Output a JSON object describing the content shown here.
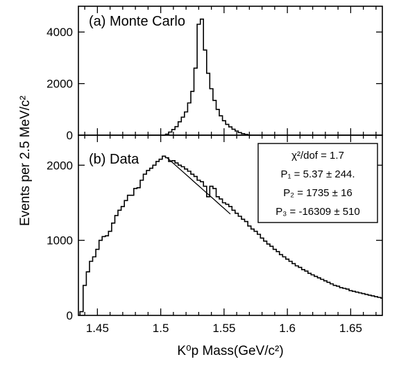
{
  "chart_data": [
    {
      "panel": "a",
      "type": "line",
      "drawstyle": "histogram-steps",
      "label": "(a) Monte Carlo",
      "xlim": [
        1.435,
        1.675
      ],
      "ylim": [
        0,
        5000
      ],
      "yticks": [
        0,
        2000,
        4000
      ],
      "ytick_labels": [
        "0",
        "2000",
        "4000"
      ],
      "x": [
        1.5025,
        1.505,
        1.5075,
        1.51,
        1.5125,
        1.515,
        1.5175,
        1.52,
        1.5225,
        1.525,
        1.5275,
        1.53,
        1.5325,
        1.535,
        1.5375,
        1.54,
        1.5425,
        1.545,
        1.5475,
        1.55,
        1.5525,
        1.555,
        1.5575,
        1.56,
        1.5625,
        1.565,
        1.5675,
        1.57
      ],
      "y": [
        0,
        40,
        120,
        220,
        330,
        520,
        700,
        900,
        1250,
        1700,
        2600,
        4300,
        4500,
        3300,
        2400,
        1800,
        1350,
        1000,
        750,
        560,
        420,
        320,
        230,
        160,
        100,
        60,
        30,
        0
      ]
    },
    {
      "panel": "b",
      "type": "line",
      "drawstyle": "histogram-steps",
      "label": "(b) Data",
      "xlim": [
        1.435,
        1.675
      ],
      "ylim": [
        0,
        2400
      ],
      "yticks": [
        0,
        1000,
        2000
      ],
      "ytick_labels": [
        "0",
        "1000",
        "2000"
      ],
      "xticks": [
        1.45,
        1.5,
        1.55,
        1.6,
        1.65
      ],
      "xtick_labels": [
        "1.45",
        "1.5",
        "1.55",
        "1.6",
        "1.65"
      ],
      "x": [
        1.4375,
        1.44,
        1.4425,
        1.445,
        1.4475,
        1.45,
        1.4525,
        1.455,
        1.4575,
        1.46,
        1.4625,
        1.465,
        1.4675,
        1.47,
        1.4725,
        1.475,
        1.4775,
        1.48,
        1.4825,
        1.485,
        1.4875,
        1.49,
        1.4925,
        1.495,
        1.4975,
        1.5,
        1.5025,
        1.505,
        1.5075,
        1.51,
        1.5125,
        1.515,
        1.5175,
        1.52,
        1.5225,
        1.525,
        1.5275,
        1.53,
        1.5325,
        1.535,
        1.5375,
        1.54,
        1.5425,
        1.545,
        1.5475,
        1.55,
        1.5525,
        1.555,
        1.5575,
        1.56,
        1.5625,
        1.565,
        1.5675,
        1.57,
        1.5725,
        1.575,
        1.5775,
        1.58,
        1.5825,
        1.585,
        1.5875,
        1.59,
        1.5925,
        1.595,
        1.5975,
        1.6,
        1.6025,
        1.605,
        1.6075,
        1.61,
        1.6125,
        1.615,
        1.6175,
        1.62,
        1.6225,
        1.625,
        1.6275,
        1.63,
        1.6325,
        1.635,
        1.6375,
        1.64,
        1.6425,
        1.645,
        1.6475,
        1.65,
        1.6525,
        1.655,
        1.6575,
        1.66,
        1.6625,
        1.665,
        1.6675,
        1.67,
        1.6725,
        1.675
      ],
      "y": [
        50,
        400,
        580,
        720,
        780,
        880,
        1000,
        1050,
        1060,
        1120,
        1230,
        1330,
        1400,
        1450,
        1530,
        1600,
        1600,
        1690,
        1700,
        1800,
        1880,
        1930,
        1960,
        2000,
        2050,
        2080,
        2120,
        2100,
        2050,
        2060,
        2030,
        2000,
        1980,
        1950,
        1920,
        1880,
        1850,
        1800,
        1780,
        1720,
        1580,
        1720,
        1690,
        1580,
        1550,
        1500,
        1480,
        1450,
        1400,
        1360,
        1320,
        1280,
        1250,
        1190,
        1150,
        1120,
        1080,
        1030,
        990,
        950,
        920,
        880,
        850,
        810,
        780,
        750,
        720,
        690,
        660,
        640,
        610,
        590,
        560,
        540,
        520,
        500,
        480,
        460,
        440,
        420,
        400,
        390,
        370,
        360,
        350,
        330,
        320,
        310,
        300,
        290,
        280,
        270,
        260,
        250,
        240,
        230
      ],
      "fit": {
        "x_range": [
          1.505,
          1.555
        ],
        "y_at_start": 2100,
        "y_at_end": 1350
      },
      "fit_box": {
        "chi2": "χ²/dof  =  1.7",
        "p1": "P₁ = 5.37 ± 244.",
        "p2": "P₂ = 1735 ± 16",
        "p3": "P₃ = -16309 ± 510"
      }
    }
  ],
  "ylabel": "Events per 2.5 MeV/c²",
  "xlabel": "K⁰p  Mass(GeV/c²)"
}
